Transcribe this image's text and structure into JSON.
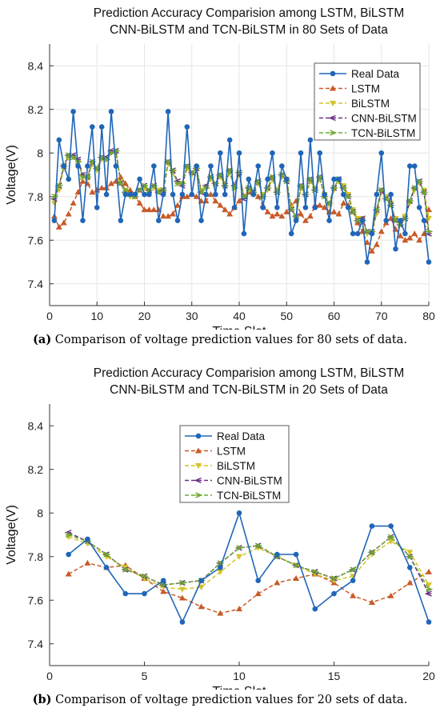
{
  "colors": {
    "real": "#2066b8",
    "lstm": "#c85a28",
    "bilstm": "#d2c428",
    "cnn": "#6a2f85",
    "tcn": "#6fa832"
  },
  "chart_data": [
    {
      "type": "line",
      "title_line1": "Prediction Accuracy Comparision among LSTM, BiLSTM",
      "title_line2": "CNN-BiLSTM and TCN-BiLSTM in 80 Sets of Data",
      "xlabel": "Time Slot",
      "ylabel": "Voltage(V)",
      "xlim": [
        0,
        80
      ],
      "ylim": [
        7.3,
        8.5
      ],
      "xticks": [
        "0",
        "10",
        "20",
        "30",
        "40",
        "50",
        "60",
        "70",
        "80"
      ],
      "yticks": [
        "7.4",
        "7.6",
        "7.8",
        "8",
        "8.2",
        "8.4"
      ],
      "grid": true,
      "legend_position": "top-right",
      "x": [
        1,
        2,
        3,
        4,
        5,
        6,
        7,
        8,
        9,
        10,
        11,
        12,
        13,
        14,
        15,
        16,
        17,
        18,
        19,
        20,
        21,
        22,
        23,
        24,
        25,
        26,
        27,
        28,
        29,
        30,
        31,
        32,
        33,
        34,
        35,
        36,
        37,
        38,
        39,
        40,
        41,
        42,
        43,
        44,
        45,
        46,
        47,
        48,
        49,
        50,
        51,
        52,
        53,
        54,
        55,
        56,
        57,
        58,
        59,
        60,
        61,
        62,
        63,
        64,
        65,
        66,
        67,
        68,
        69,
        70,
        71,
        72,
        73,
        74,
        75,
        76,
        77,
        78,
        79,
        80
      ],
      "series": [
        {
          "name": "Real Data",
          "key": "real",
          "values": [
            7.69,
            8.06,
            7.94,
            7.88,
            8.19,
            7.94,
            7.69,
            7.94,
            8.12,
            7.75,
            8.12,
            7.81,
            8.19,
            7.94,
            7.69,
            7.81,
            7.81,
            7.81,
            7.88,
            7.81,
            7.81,
            7.94,
            7.69,
            7.81,
            8.19,
            7.81,
            7.69,
            7.81,
            8.12,
            7.81,
            7.94,
            7.69,
            7.81,
            7.94,
            7.81,
            8.0,
            7.81,
            8.06,
            7.75,
            8.0,
            7.63,
            7.88,
            7.81,
            7.94,
            7.75,
            7.88,
            8.0,
            7.75,
            7.94,
            7.88,
            7.63,
            7.69,
            8.0,
            7.75,
            8.06,
            7.75,
            8.0,
            7.81,
            7.69,
            7.88,
            7.88,
            7.81,
            7.75,
            7.63,
            7.63,
            7.69,
            7.5,
            7.63,
            7.81,
            8.0,
            7.69,
            7.81,
            7.56,
            7.69,
            7.63,
            7.94,
            7.94,
            7.75,
            7.69,
            7.5
          ]
        },
        {
          "name": "LSTM",
          "key": "lstm",
          "values": [
            7.71,
            7.66,
            7.68,
            7.72,
            7.77,
            7.82,
            7.87,
            7.86,
            7.82,
            7.83,
            7.84,
            7.84,
            7.86,
            7.87,
            7.89,
            7.86,
            7.83,
            7.8,
            7.77,
            7.74,
            7.74,
            7.74,
            7.74,
            7.71,
            7.71,
            7.72,
            7.76,
            7.8,
            7.8,
            7.81,
            7.8,
            7.78,
            7.78,
            7.81,
            7.78,
            7.76,
            7.74,
            7.72,
            7.75,
            7.78,
            7.8,
            7.82,
            7.82,
            7.8,
            7.76,
            7.73,
            7.71,
            7.72,
            7.71,
            7.73,
            7.76,
            7.78,
            7.72,
            7.69,
            7.71,
            7.76,
            7.76,
            7.75,
            7.73,
            7.73,
            7.72,
            7.77,
            7.76,
            7.73,
            7.68,
            7.64,
            7.59,
            7.55,
            7.58,
            7.64,
            7.68,
            7.7,
            7.65,
            7.62,
            7.6,
            7.61,
            7.63,
            7.6,
            7.63,
            7.74
          ]
        },
        {
          "name": "BiLSTM",
          "key": "bilstm",
          "values": [
            7.77,
            7.83,
            7.93,
            7.98,
            7.98,
            7.96,
            7.89,
            7.88,
            7.95,
            7.92,
            7.97,
            7.97,
            8.0,
            8.0,
            7.87,
            7.83,
            7.8,
            7.8,
            7.83,
            7.84,
            7.82,
            7.84,
            7.83,
            7.82,
            7.95,
            7.91,
            7.86,
            7.86,
            7.93,
            7.9,
            7.92,
            7.83,
            7.84,
            7.88,
            7.85,
            7.89,
            7.86,
            7.91,
            7.84,
            7.9,
            7.8,
            7.83,
            7.82,
            7.86,
            7.81,
            7.83,
            7.88,
            7.83,
            7.89,
            7.88,
            7.75,
            7.7,
            7.84,
            7.8,
            7.87,
            7.84,
            7.88,
            7.81,
            7.76,
            7.83,
            7.87,
            7.85,
            7.81,
            7.74,
            7.7,
            7.7,
            7.63,
            7.63,
            7.72,
            7.82,
            7.8,
            7.77,
            7.7,
            7.68,
            7.71,
            7.77,
            7.83,
            7.86,
            7.83,
            7.7
          ]
        },
        {
          "name": "CNN-BiLSTM",
          "key": "cnn",
          "values": [
            7.79,
            7.85,
            7.94,
            7.99,
            7.99,
            7.97,
            7.9,
            7.89,
            7.96,
            7.93,
            7.98,
            7.98,
            8.01,
            8.01,
            7.86,
            7.82,
            7.81,
            7.81,
            7.83,
            7.85,
            7.83,
            7.85,
            7.82,
            7.83,
            7.96,
            7.92,
            7.87,
            7.85,
            7.94,
            7.91,
            7.93,
            7.82,
            7.85,
            7.89,
            7.86,
            7.9,
            7.85,
            7.92,
            7.85,
            7.91,
            7.79,
            7.84,
            7.82,
            7.87,
            7.8,
            7.84,
            7.89,
            7.82,
            7.9,
            7.87,
            7.74,
            7.71,
            7.85,
            7.81,
            7.88,
            7.83,
            7.89,
            7.8,
            7.77,
            7.84,
            7.88,
            7.84,
            7.8,
            7.73,
            7.69,
            7.7,
            7.64,
            7.64,
            7.74,
            7.83,
            7.79,
            7.76,
            7.69,
            7.67,
            7.7,
            7.78,
            7.84,
            7.87,
            7.82,
            7.63
          ]
        },
        {
          "name": "TCN-BiLSTM",
          "key": "tcn",
          "values": [
            7.8,
            7.85,
            7.94,
            7.99,
            7.98,
            7.96,
            7.89,
            7.89,
            7.96,
            7.93,
            7.98,
            7.97,
            8.0,
            8.01,
            7.86,
            7.83,
            7.81,
            7.8,
            7.83,
            7.85,
            7.83,
            7.85,
            7.82,
            7.83,
            7.96,
            7.92,
            7.86,
            7.86,
            7.94,
            7.91,
            7.93,
            7.82,
            7.84,
            7.89,
            7.86,
            7.9,
            7.85,
            7.92,
            7.84,
            7.91,
            7.8,
            7.84,
            7.82,
            7.87,
            7.8,
            7.84,
            7.89,
            7.82,
            7.9,
            7.87,
            7.74,
            7.71,
            7.85,
            7.81,
            7.88,
            7.83,
            7.89,
            7.8,
            7.77,
            7.84,
            7.88,
            7.84,
            7.8,
            7.73,
            7.69,
            7.69,
            7.64,
            7.64,
            7.74,
            7.83,
            7.79,
            7.76,
            7.69,
            7.67,
            7.7,
            7.78,
            7.84,
            7.87,
            7.82,
            7.64
          ]
        }
      ]
    },
    {
      "type": "line",
      "title_line1": "Prediction Accuracy Comparision among LSTM, BiLSTM",
      "title_line2": "CNN-BiLSTM and TCN-BiLSTM in 20 Sets of Data",
      "xlabel": "Time Slot",
      "ylabel": "Voltage(V)",
      "xlim": [
        0,
        20
      ],
      "ylim": [
        7.3,
        8.5
      ],
      "xticks": [
        "0",
        "5",
        "10",
        "15",
        "20"
      ],
      "yticks": [
        "7.4",
        "7.6",
        "7.8",
        "8",
        "8.2",
        "8.4"
      ],
      "grid": false,
      "legend_position": "top-center",
      "x": [
        1,
        2,
        3,
        4,
        5,
        6,
        7,
        8,
        9,
        10,
        11,
        12,
        13,
        14,
        15,
        16,
        17,
        18,
        19,
        20
      ],
      "series": [
        {
          "name": "Real Data",
          "key": "real",
          "values": [
            7.81,
            7.88,
            7.75,
            7.63,
            7.63,
            7.69,
            7.5,
            7.69,
            7.75,
            8.0,
            7.69,
            7.81,
            7.81,
            7.56,
            7.63,
            7.69,
            7.94,
            7.94,
            7.75,
            7.5
          ]
        },
        {
          "name": "LSTM",
          "key": "lstm",
          "values": [
            7.72,
            7.77,
            7.75,
            7.76,
            7.7,
            7.64,
            7.61,
            7.57,
            7.54,
            7.56,
            7.63,
            7.68,
            7.7,
            7.72,
            7.68,
            7.62,
            7.59,
            7.62,
            7.68,
            7.73
          ]
        },
        {
          "name": "BiLSTM",
          "key": "bilstm",
          "values": [
            7.89,
            7.86,
            7.8,
            7.75,
            7.7,
            7.66,
            7.65,
            7.66,
            7.73,
            7.8,
            7.84,
            7.8,
            7.76,
            7.72,
            7.69,
            7.71,
            7.81,
            7.87,
            7.82,
            7.67
          ]
        },
        {
          "name": "CNN-BiLSTM",
          "key": "cnn",
          "values": [
            7.91,
            7.87,
            7.81,
            7.74,
            7.71,
            7.67,
            7.68,
            7.69,
            7.77,
            7.84,
            7.85,
            7.8,
            7.76,
            7.73,
            7.7,
            7.74,
            7.82,
            7.89,
            7.8,
            7.63
          ]
        },
        {
          "name": "TCN-BiLSTM",
          "key": "tcn",
          "values": [
            7.9,
            7.87,
            7.81,
            7.74,
            7.71,
            7.67,
            7.68,
            7.69,
            7.77,
            7.84,
            7.85,
            7.8,
            7.76,
            7.73,
            7.7,
            7.74,
            7.82,
            7.89,
            7.8,
            7.65
          ]
        }
      ]
    }
  ],
  "captions": [
    {
      "label": "(a)",
      "text": " Comparison of voltage prediction values for 80 sets of data."
    },
    {
      "label": "(b)",
      "text": " Comparison of voltage prediction values for 20 sets of data."
    }
  ]
}
